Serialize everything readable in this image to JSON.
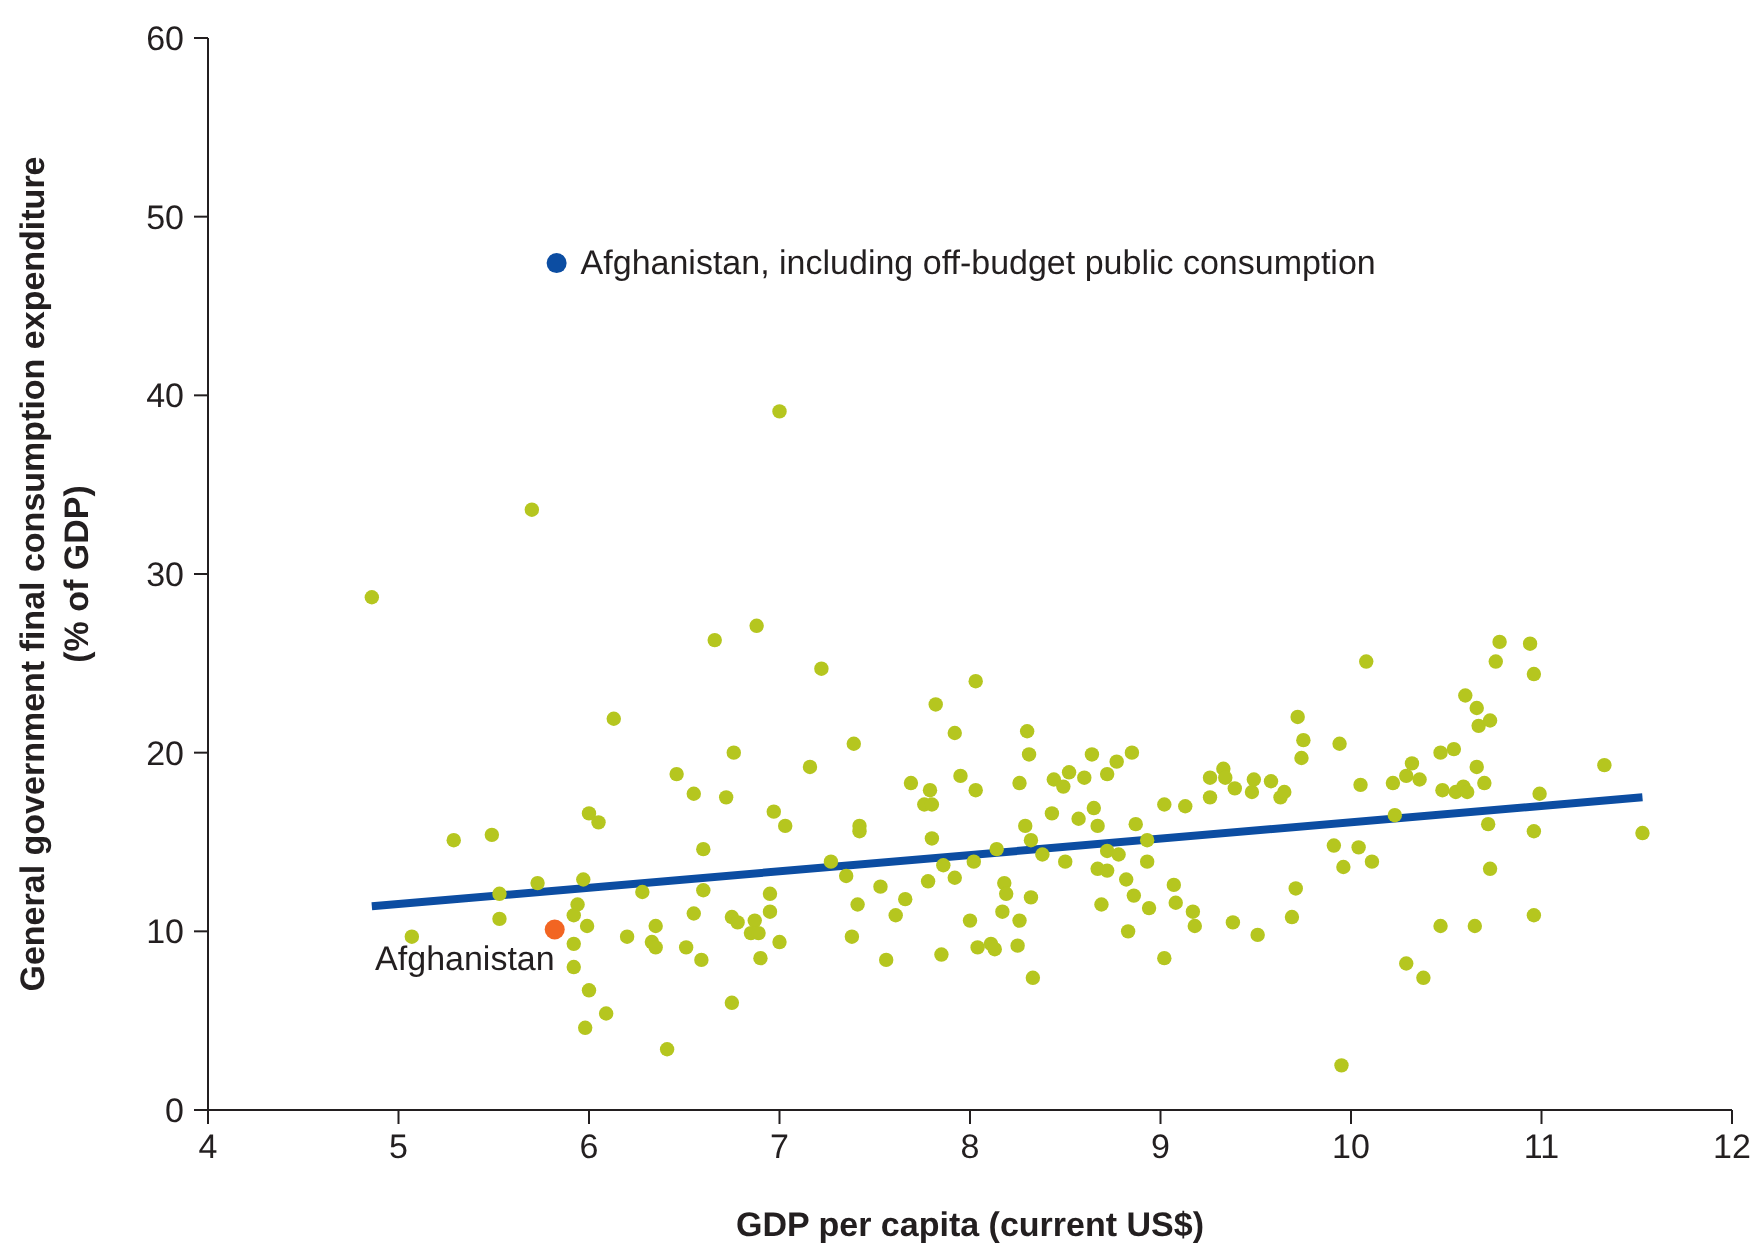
{
  "chart_data": {
    "type": "scatter",
    "xlabel": "GDP per capita (current US$)",
    "ylabel": "General government final consumption expenditure (% of GDP)",
    "xlim": [
      4,
      12
    ],
    "xticks": [
      4,
      5,
      6,
      7,
      8,
      9,
      10,
      11,
      12
    ],
    "ylim": [
      0,
      60
    ],
    "yticks": [
      0,
      10,
      20,
      30,
      40,
      50,
      60
    ],
    "grid": false,
    "legend": false,
    "marker": "circle",
    "series": [
      {
        "color": "#b5c61f",
        "x": [
          5.7,
          4.86,
          6.88,
          6.66,
          6.13,
          6.76,
          6.46,
          6.55,
          6.72,
          6.97,
          7.03,
          6.0,
          6.05,
          5.29,
          5.49,
          6.6,
          5.73,
          5.97,
          5.53,
          6.28,
          6.6,
          6.95,
          5.94,
          5.92,
          5.53,
          5.99,
          6.35,
          6.55,
          6.75,
          6.78,
          6.87,
          6.95,
          5.07,
          5.92,
          6.2,
          6.33,
          6.35,
          6.51,
          6.85,
          6.89,
          7.0,
          5.92,
          6.59,
          6.9,
          6.0,
          6.09,
          5.98,
          6.75,
          6.41,
          7.0,
          7.22,
          8.03,
          7.82,
          7.92,
          8.3,
          8.31,
          7.39,
          7.16,
          7.95,
          7.69,
          7.79,
          8.03,
          7.76,
          7.8,
          7.42,
          7.42,
          7.8,
          7.27,
          7.35,
          7.86,
          7.78,
          7.92,
          7.53,
          7.41,
          7.66,
          7.61,
          7.38,
          7.56,
          7.85,
          8.0,
          8.02,
          8.14,
          8.04,
          8.11,
          8.13,
          8.18,
          8.19,
          8.17,
          8.26,
          8.25,
          8.33,
          8.32,
          8.29,
          8.32,
          8.26,
          8.38,
          8.44,
          8.49,
          8.52,
          8.6,
          8.64,
          8.72,
          8.77,
          8.85,
          8.43,
          8.57,
          8.65,
          8.67,
          8.87,
          8.5,
          8.67,
          8.72,
          8.72,
          8.78,
          8.93,
          8.93,
          8.82,
          8.86,
          8.69,
          8.94,
          8.83,
          9.02,
          9.07,
          9.08,
          9.17,
          9.18,
          9.02,
          9.13,
          9.26,
          9.26,
          9.33,
          9.34,
          9.39,
          9.48,
          9.49,
          9.58,
          9.63,
          9.65,
          9.38,
          9.51,
          10.08,
          10.78,
          10.94,
          10.76,
          10.96,
          10.6,
          10.66,
          10.67,
          10.73,
          9.72,
          9.75,
          9.74,
          9.94,
          10.05,
          10.22,
          10.29,
          10.32,
          10.36,
          10.47,
          10.54,
          10.66,
          10.48,
          10.55,
          10.59,
          10.61,
          10.7,
          10.99,
          11.33,
          11.53,
          10.23,
          10.72,
          10.96,
          9.91,
          10.04,
          9.96,
          10.11,
          9.71,
          9.69,
          10.73,
          10.47,
          10.65,
          10.96,
          10.29,
          10.38,
          9.95
        ],
        "values": [
          33.6,
          28.7,
          27.1,
          26.3,
          21.9,
          20.0,
          18.8,
          17.7,
          17.5,
          16.7,
          15.9,
          16.6,
          16.1,
          15.1,
          15.4,
          14.6,
          12.7,
          12.9,
          12.1,
          12.2,
          12.3,
          12.1,
          11.5,
          10.9,
          10.7,
          10.3,
          10.3,
          11.0,
          10.8,
          10.5,
          10.6,
          11.1,
          9.7,
          9.3,
          9.7,
          9.4,
          9.1,
          9.1,
          9.9,
          9.9,
          9.4,
          8.0,
          8.4,
          8.5,
          6.7,
          5.4,
          4.6,
          6.0,
          3.4,
          39.1,
          24.7,
          24.0,
          22.7,
          21.1,
          21.2,
          19.9,
          20.5,
          19.2,
          18.7,
          18.3,
          17.9,
          17.9,
          17.1,
          17.1,
          15.9,
          15.6,
          15.2,
          13.9,
          13.1,
          13.7,
          12.8,
          13.0,
          12.5,
          11.5,
          11.8,
          10.9,
          9.7,
          8.4,
          8.7,
          10.6,
          13.9,
          14.6,
          9.1,
          9.3,
          9.0,
          12.7,
          12.1,
          11.1,
          10.6,
          9.2,
          7.4,
          11.9,
          15.9,
          15.1,
          18.3,
          14.3,
          18.5,
          18.1,
          18.9,
          18.6,
          19.9,
          18.8,
          19.5,
          20.0,
          16.6,
          16.3,
          16.9,
          15.9,
          16.0,
          13.9,
          13.5,
          13.4,
          14.5,
          14.3,
          15.1,
          13.9,
          12.9,
          12.0,
          11.5,
          11.3,
          10.0,
          8.5,
          12.6,
          11.6,
          11.1,
          10.3,
          17.1,
          17.0,
          17.5,
          18.6,
          19.1,
          18.6,
          18.0,
          17.8,
          18.5,
          18.4,
          17.5,
          17.8,
          10.5,
          9.8,
          25.1,
          26.2,
          26.1,
          25.1,
          24.4,
          23.2,
          22.5,
          21.5,
          21.8,
          22.0,
          20.7,
          19.7,
          20.5,
          18.2,
          18.3,
          18.7,
          19.4,
          18.5,
          20.0,
          20.2,
          19.2,
          17.9,
          17.8,
          18.1,
          17.8,
          18.3,
          17.7,
          19.3,
          15.5,
          16.5,
          16.0,
          15.6,
          14.8,
          14.7,
          13.6,
          13.9,
          12.4,
          10.8,
          13.5,
          10.3,
          10.3,
          10.9,
          8.2,
          7.4,
          2.5
        ]
      },
      {
        "type": "line",
        "marker": "none",
        "color": "#0c4da2",
        "x": [
          4.86,
          11.53
        ],
        "values": [
          11.4,
          17.5
        ]
      },
      {
        "name": "Afghanistan",
        "color": "#f26522",
        "x": [
          5.82
        ],
        "values": [
          10.1
        ]
      },
      {
        "name": "Afghanistan, including off-budget public consumption",
        "color": "#0c4da2",
        "x": [
          5.83
        ],
        "values": [
          47.4
        ]
      }
    ]
  }
}
